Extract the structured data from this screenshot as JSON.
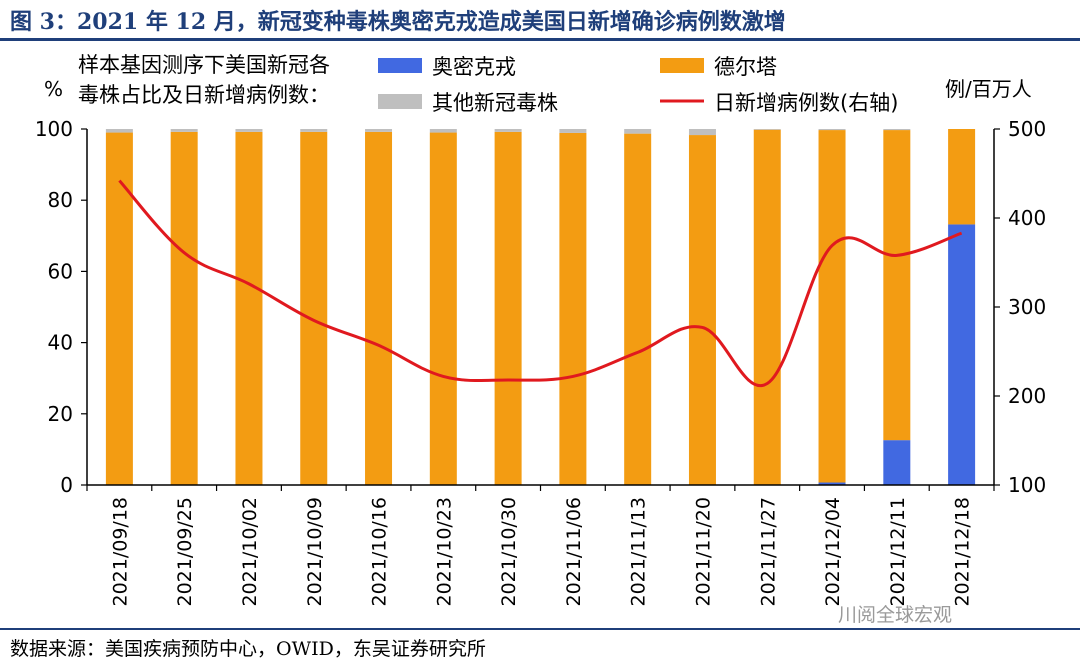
{
  "title": "图 3：2021 年 12 月，新冠变种毒株奥密克戎造成美国日新增确诊病例数激增",
  "source": "数据来源：美国疾病预防中心，OWID，东吴证券研究所",
  "watermark": "川阅全球宏观",
  "colors": {
    "omicron": "#4169e1",
    "delta": "#f39c12",
    "other": "#bfbfbf",
    "cases_line": "#e0191f",
    "title": "#1f3f7a"
  },
  "chart_data": {
    "type": "bar",
    "subtitle": "样本基因测序下美国新冠各毒株占比及日新增病例数：",
    "categories": [
      "2021/09/18",
      "2021/09/25",
      "2021/10/02",
      "2021/10/09",
      "2021/10/16",
      "2021/10/23",
      "2021/10/30",
      "2021/11/06",
      "2021/11/13",
      "2021/11/20",
      "2021/11/27",
      "2021/12/04",
      "2021/12/11",
      "2021/12/18"
    ],
    "left_axis": {
      "label": "%",
      "ylim": [
        0,
        100
      ],
      "ticks": [
        "0",
        "20",
        "40",
        "60",
        "80",
        "100"
      ]
    },
    "right_axis": {
      "label": "例/百万人",
      "ylim": [
        100,
        500
      ],
      "ticks": [
        "100",
        "200",
        "300",
        "400",
        "500"
      ]
    },
    "series": [
      {
        "name": "奥密克戎",
        "type": "stacked-bar",
        "axis": "left",
        "values": [
          0,
          0,
          0,
          0,
          0,
          0,
          0,
          0,
          0,
          0,
          0,
          0.7,
          12.6,
          73.2
        ]
      },
      {
        "name": "德尔塔",
        "type": "stacked-bar",
        "axis": "left",
        "values": [
          99.0,
          99.2,
          99.2,
          99.2,
          99.2,
          99.0,
          99.2,
          98.9,
          98.7,
          98.3,
          99.8,
          99.0,
          87.1,
          26.8
        ]
      },
      {
        "name": "其他新冠毒株",
        "type": "stacked-bar",
        "axis": "left",
        "values": [
          1.0,
          0.8,
          0.8,
          0.8,
          0.8,
          1.0,
          0.8,
          1.1,
          1.3,
          1.7,
          0.2,
          0.3,
          0.3,
          0
        ]
      },
      {
        "name": "日新增病例数(右轴)",
        "type": "line",
        "axis": "right",
        "values": [
          442,
          361,
          326,
          285,
          257,
          222,
          218,
          222,
          249,
          277,
          214,
          369,
          358,
          383
        ]
      }
    ],
    "grid": false,
    "legend": "top"
  }
}
